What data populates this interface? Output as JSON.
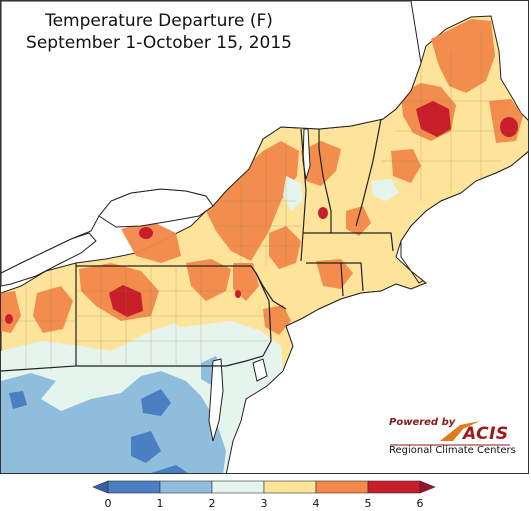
{
  "title": {
    "line1": "Temperature Departure (F)",
    "line2": "September 1-October 15, 2015"
  },
  "logo": {
    "powered_by": "Powered by",
    "name": "ACIS",
    "subtitle": "Regional Climate Centers"
  },
  "legend": {
    "ticks": [
      "0",
      "1",
      "2",
      "3",
      "4",
      "5",
      "6"
    ],
    "bins": [
      {
        "range": "0-1",
        "color": "#4a7fc1"
      },
      {
        "range": "1-2",
        "color": "#8fbedd"
      },
      {
        "range": "2-3",
        "color": "#e6f4ee"
      },
      {
        "range": "3-4",
        "color": "#fde49a"
      },
      {
        "range": "4-5",
        "color": "#f3894a"
      },
      {
        "range": "5-6",
        "color": "#c81e2a"
      }
    ],
    "below_color": "#3760a8",
    "above_color": "#9c0f2e"
  },
  "colors": {
    "lake": "#ffffff",
    "background": "#ffffff",
    "outline": "#222222"
  }
}
